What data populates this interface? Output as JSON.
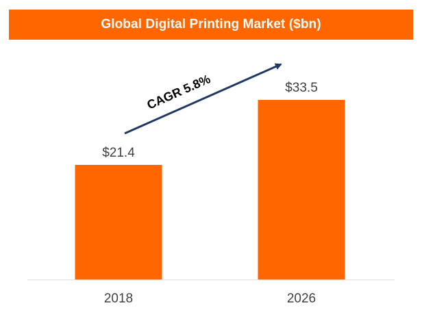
{
  "title": "Global Digital Printing Market ($bn)",
  "annotation": {
    "text": "CAGR 5.8%",
    "arrow_color": "#1f3864"
  },
  "colors": {
    "bar": "#ff6600",
    "title_bar": "#ff6600",
    "title_text": "#ffffff",
    "axis": "#d9d9d9",
    "label_text": "#404040"
  },
  "chart_data": {
    "type": "bar",
    "title": "Global Digital Printing Market ($bn)",
    "categories": [
      "2018",
      "2026"
    ],
    "values": [
      21.4,
      33.5
    ],
    "value_labels": [
      "$21.4",
      "$33.5"
    ],
    "xlabel": "",
    "ylabel": "",
    "ylim": [
      0,
      40
    ],
    "grid": false,
    "legend": "none"
  }
}
